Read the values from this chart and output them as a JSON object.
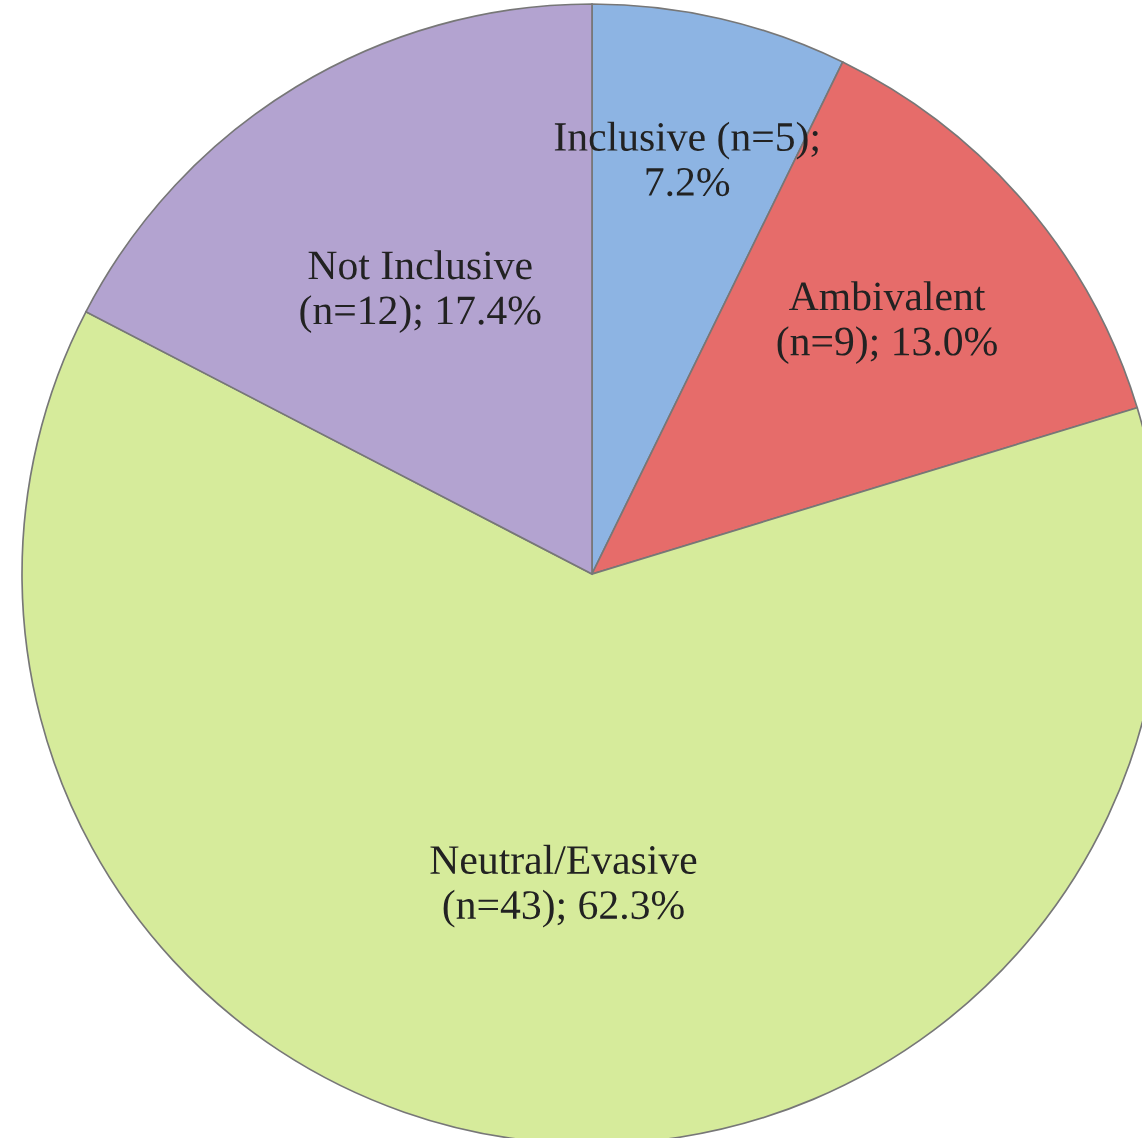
{
  "chart_data": {
    "type": "pie",
    "categories": [
      "Inclusive",
      "Ambivalent",
      "Neutral/Evasive",
      "Not Inclusive"
    ],
    "values": [
      5,
      9,
      43,
      12
    ],
    "value_labels": [
      "(n=5);\n7.2%",
      "(n=9); 13.0%",
      "(n=43); 62.3%",
      "(n=12); 17.4%"
    ],
    "colors": [
      "#8db4e3",
      "#e66c6a",
      "#d6eb9b",
      "#b3a3d0"
    ],
    "legend": false
  }
}
